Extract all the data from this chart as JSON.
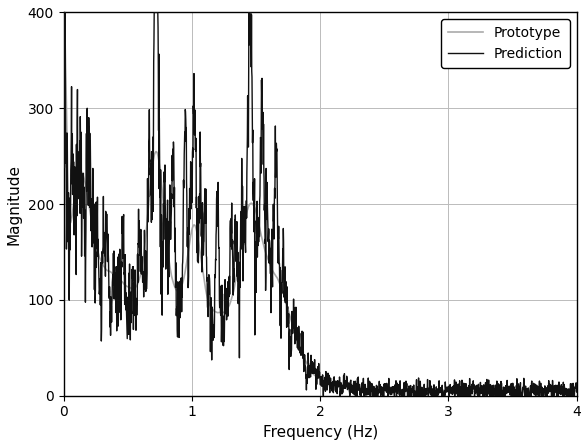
{
  "xlabel": "Frequency (Hz)",
  "ylabel": "Magnitude",
  "xlim": [
    0,
    4
  ],
  "ylim": [
    0,
    400
  ],
  "xticks": [
    0,
    1,
    2,
    3,
    4
  ],
  "yticks": [
    0,
    100,
    200,
    300,
    400
  ],
  "prototype_color": "#aaaaaa",
  "prediction_color": "#111111",
  "prototype_linewidth": 1.2,
  "prediction_linewidth": 1.0,
  "legend_labels": [
    "Prototype",
    "Prediction"
  ],
  "figsize": [
    5.88,
    4.47
  ],
  "dpi": 100
}
